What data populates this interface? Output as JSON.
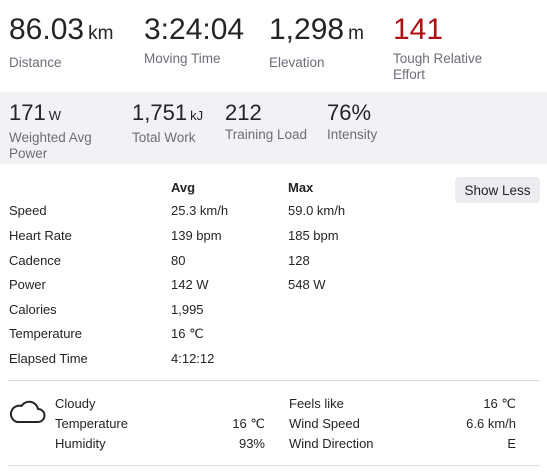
{
  "top_stats": [
    {
      "value": "86.03",
      "unit": "km",
      "label": "Distance"
    },
    {
      "value": "3:24:04",
      "unit": "",
      "label": "Moving Time"
    },
    {
      "value": "1,298",
      "unit": "m",
      "label": "Elevation"
    },
    {
      "value": "141",
      "unit": "",
      "label": "Tough Relative Effort",
      "color": "#b00f12"
    }
  ],
  "secondary_stats": [
    {
      "value": "171",
      "unit": "W",
      "label": "Weighted Avg Power"
    },
    {
      "value": "1,751",
      "unit": "kJ",
      "label": "Total Work"
    },
    {
      "value": "212",
      "unit": "",
      "label": "Training Load"
    },
    {
      "value": "76%",
      "unit": "",
      "label": "Intensity"
    }
  ],
  "details": {
    "avg_header": "Avg",
    "max_header": "Max",
    "toggle_label": "Show Less",
    "rows": [
      {
        "name": "Speed",
        "avg": "25.3 km/h",
        "max": "59.0 km/h"
      },
      {
        "name": "Heart Rate",
        "avg": "139 bpm",
        "max": "185 bpm"
      },
      {
        "name": "Cadence",
        "avg": "80",
        "max": "128"
      },
      {
        "name": "Power",
        "avg": "142 W",
        "max": "548 W"
      },
      {
        "name": "Calories",
        "avg": "1,995",
        "max": ""
      },
      {
        "name": "Temperature",
        "avg": "16 ℃",
        "max": ""
      },
      {
        "name": "Elapsed Time",
        "avg": "4:12:12",
        "max": ""
      }
    ]
  },
  "weather": {
    "icon": "cloud-icon",
    "condition": "Cloudy",
    "temperature_label": "Temperature",
    "temperature_value": "16 ℃",
    "humidity_label": "Humidity",
    "humidity_value": "93%",
    "feels_like_label": "Feels like",
    "feels_like_value": "16 ℃",
    "wind_speed_label": "Wind Speed",
    "wind_speed_value": "6.6 km/h",
    "wind_direction_label": "Wind Direction",
    "wind_direction_value": "E"
  }
}
